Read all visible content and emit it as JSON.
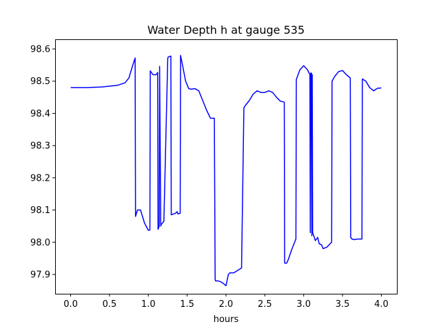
{
  "chart_data": {
    "type": "line",
    "title": "Water Depth h at gauge 535",
    "xlabel": "hours",
    "ylabel": "",
    "xlim": [
      -0.2,
      4.2
    ],
    "ylim": [
      97.84,
      98.63
    ],
    "x_ticks": [
      0.0,
      0.5,
      1.0,
      1.5,
      2.0,
      2.5,
      3.0,
      3.5,
      4.0
    ],
    "x_tick_labels": [
      "0.0",
      "0.5",
      "1.0",
      "1.5",
      "2.0",
      "2.5",
      "3.0",
      "3.5",
      "4.0"
    ],
    "y_ticks": [
      97.9,
      98.0,
      98.1,
      98.2,
      98.3,
      98.4,
      98.5,
      98.6
    ],
    "y_tick_labels": [
      "97.9",
      "98.0",
      "98.1",
      "98.2",
      "98.3",
      "98.4",
      "98.5",
      "98.6"
    ],
    "grid": false,
    "legend": "none",
    "line_color": "#0000ff",
    "series": [
      {
        "x": [
          0.0,
          0.2,
          0.4,
          0.6,
          0.7,
          0.75,
          0.8,
          0.83,
          0.835,
          0.86,
          0.9,
          0.95,
          1.0,
          1.02,
          1.025,
          1.06,
          1.1,
          1.12,
          1.125,
          1.14,
          1.145,
          1.16,
          1.165,
          1.2,
          1.25,
          1.255,
          1.29,
          1.295,
          1.35,
          1.37,
          1.38,
          1.41,
          1.415,
          1.44,
          1.48,
          1.52,
          1.55,
          1.6,
          1.65,
          1.7,
          1.75,
          1.8,
          1.85,
          1.86,
          1.865,
          1.9,
          1.95,
          2.0,
          2.03,
          2.05,
          2.1,
          2.2,
          2.23,
          2.235,
          2.3,
          2.35,
          2.4,
          2.45,
          2.5,
          2.55,
          2.6,
          2.65,
          2.7,
          2.75,
          2.755,
          2.78,
          2.8,
          2.85,
          2.9,
          2.905,
          2.95,
          3.0,
          3.05,
          3.08,
          3.085,
          3.09,
          3.1,
          3.105,
          3.11,
          3.115,
          3.15,
          3.18,
          3.2,
          3.23,
          3.25,
          3.3,
          3.35,
          3.36,
          3.365,
          3.4,
          3.45,
          3.5,
          3.55,
          3.6,
          3.605,
          3.62,
          3.65,
          3.7,
          3.75,
          3.755,
          3.8,
          3.85,
          3.9,
          3.95,
          4.0
        ],
        "y": [
          98.48,
          98.48,
          98.482,
          98.487,
          98.495,
          98.51,
          98.55,
          98.572,
          98.08,
          98.1,
          98.1,
          98.06,
          98.037,
          98.038,
          98.532,
          98.52,
          98.52,
          98.527,
          98.04,
          98.05,
          98.546,
          98.05,
          98.055,
          98.065,
          98.57,
          98.575,
          98.578,
          98.085,
          98.09,
          98.095,
          98.088,
          98.09,
          98.58,
          98.55,
          98.5,
          98.477,
          98.475,
          98.477,
          98.47,
          98.44,
          98.41,
          98.385,
          98.385,
          97.885,
          97.88,
          97.88,
          97.875,
          97.865,
          97.9,
          97.905,
          97.905,
          97.92,
          98.415,
          98.42,
          98.44,
          98.46,
          98.47,
          98.465,
          98.465,
          98.47,
          98.465,
          98.45,
          98.438,
          98.435,
          97.935,
          97.935,
          97.945,
          97.98,
          98.01,
          98.505,
          98.535,
          98.548,
          98.535,
          98.52,
          98.03,
          98.525,
          98.525,
          98.02,
          98.52,
          98.03,
          98.005,
          98.015,
          97.995,
          97.992,
          97.98,
          97.985,
          97.998,
          98.0,
          98.5,
          98.515,
          98.53,
          98.533,
          98.52,
          98.51,
          98.015,
          98.01,
          98.008,
          98.01,
          98.01,
          98.507,
          98.5,
          98.48,
          98.47,
          98.478,
          98.479
        ]
      }
    ]
  }
}
